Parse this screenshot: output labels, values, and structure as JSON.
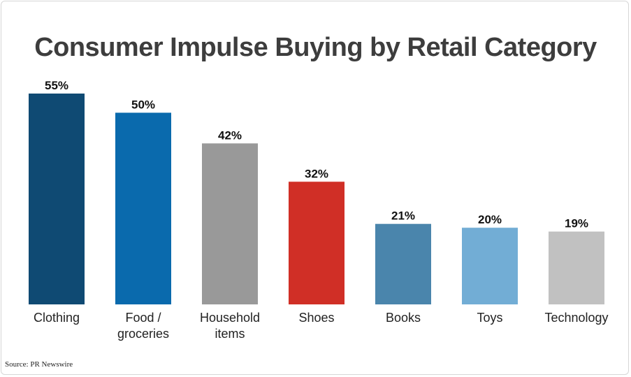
{
  "chart_data": {
    "type": "bar",
    "title": "Consumer Impulse Buying by Retail Category",
    "xlabel": "",
    "ylabel": "",
    "ylim": [
      0,
      55
    ],
    "grid": false,
    "legend": "none",
    "categories": [
      [
        "Clothing"
      ],
      [
        "Food /",
        "groceries"
      ],
      [
        "Household",
        "items"
      ],
      [
        "Shoes"
      ],
      [
        "Books"
      ],
      [
        "Toys"
      ],
      [
        "Technology"
      ]
    ],
    "values": [
      55,
      50,
      42,
      32,
      21,
      20,
      19
    ],
    "value_labels": [
      "55%",
      "50%",
      "42%",
      "32%",
      "21%",
      "20%",
      "19%"
    ],
    "colors": [
      "#0f4a73",
      "#0a6aad",
      "#999999",
      "#d02f26",
      "#4a85ac",
      "#72add5",
      "#c1c1c1"
    ]
  },
  "footer": {
    "source": "Source: PR Newswire"
  }
}
